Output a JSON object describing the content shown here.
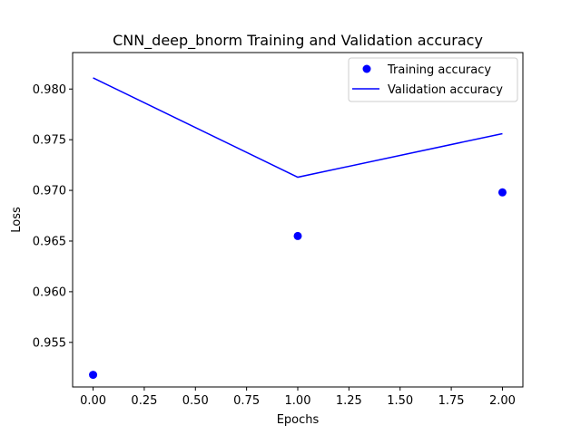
{
  "chart_data": {
    "type": "line",
    "title": "CNN_deep_bnorm Training and Validation accuracy",
    "xlabel": "Epochs",
    "ylabel": "Loss",
    "xlim": [
      -0.1,
      2.1
    ],
    "ylim": [
      0.9506,
      0.9836
    ],
    "xticks": [
      0.0,
      0.25,
      0.5,
      0.75,
      1.0,
      1.25,
      1.5,
      1.75,
      2.0
    ],
    "xtick_labels": [
      "0.00",
      "0.25",
      "0.50",
      "0.75",
      "1.00",
      "1.25",
      "1.50",
      "1.75",
      "2.00"
    ],
    "yticks": [
      0.955,
      0.96,
      0.965,
      0.97,
      0.975,
      0.98
    ],
    "ytick_labels": [
      "0.955",
      "0.960",
      "0.965",
      "0.970",
      "0.975",
      "0.980"
    ],
    "grid": false,
    "legend_position": "top-right",
    "series": [
      {
        "name": "Training accuracy",
        "style": "markers",
        "color": "#0000ff",
        "x": [
          0,
          1,
          2
        ],
        "y": [
          0.9518,
          0.9655,
          0.9698
        ]
      },
      {
        "name": "Validation accuracy",
        "style": "line",
        "color": "#0000ff",
        "x": [
          0,
          1,
          2
        ],
        "y": [
          0.9811,
          0.9713,
          0.9756
        ]
      }
    ]
  }
}
